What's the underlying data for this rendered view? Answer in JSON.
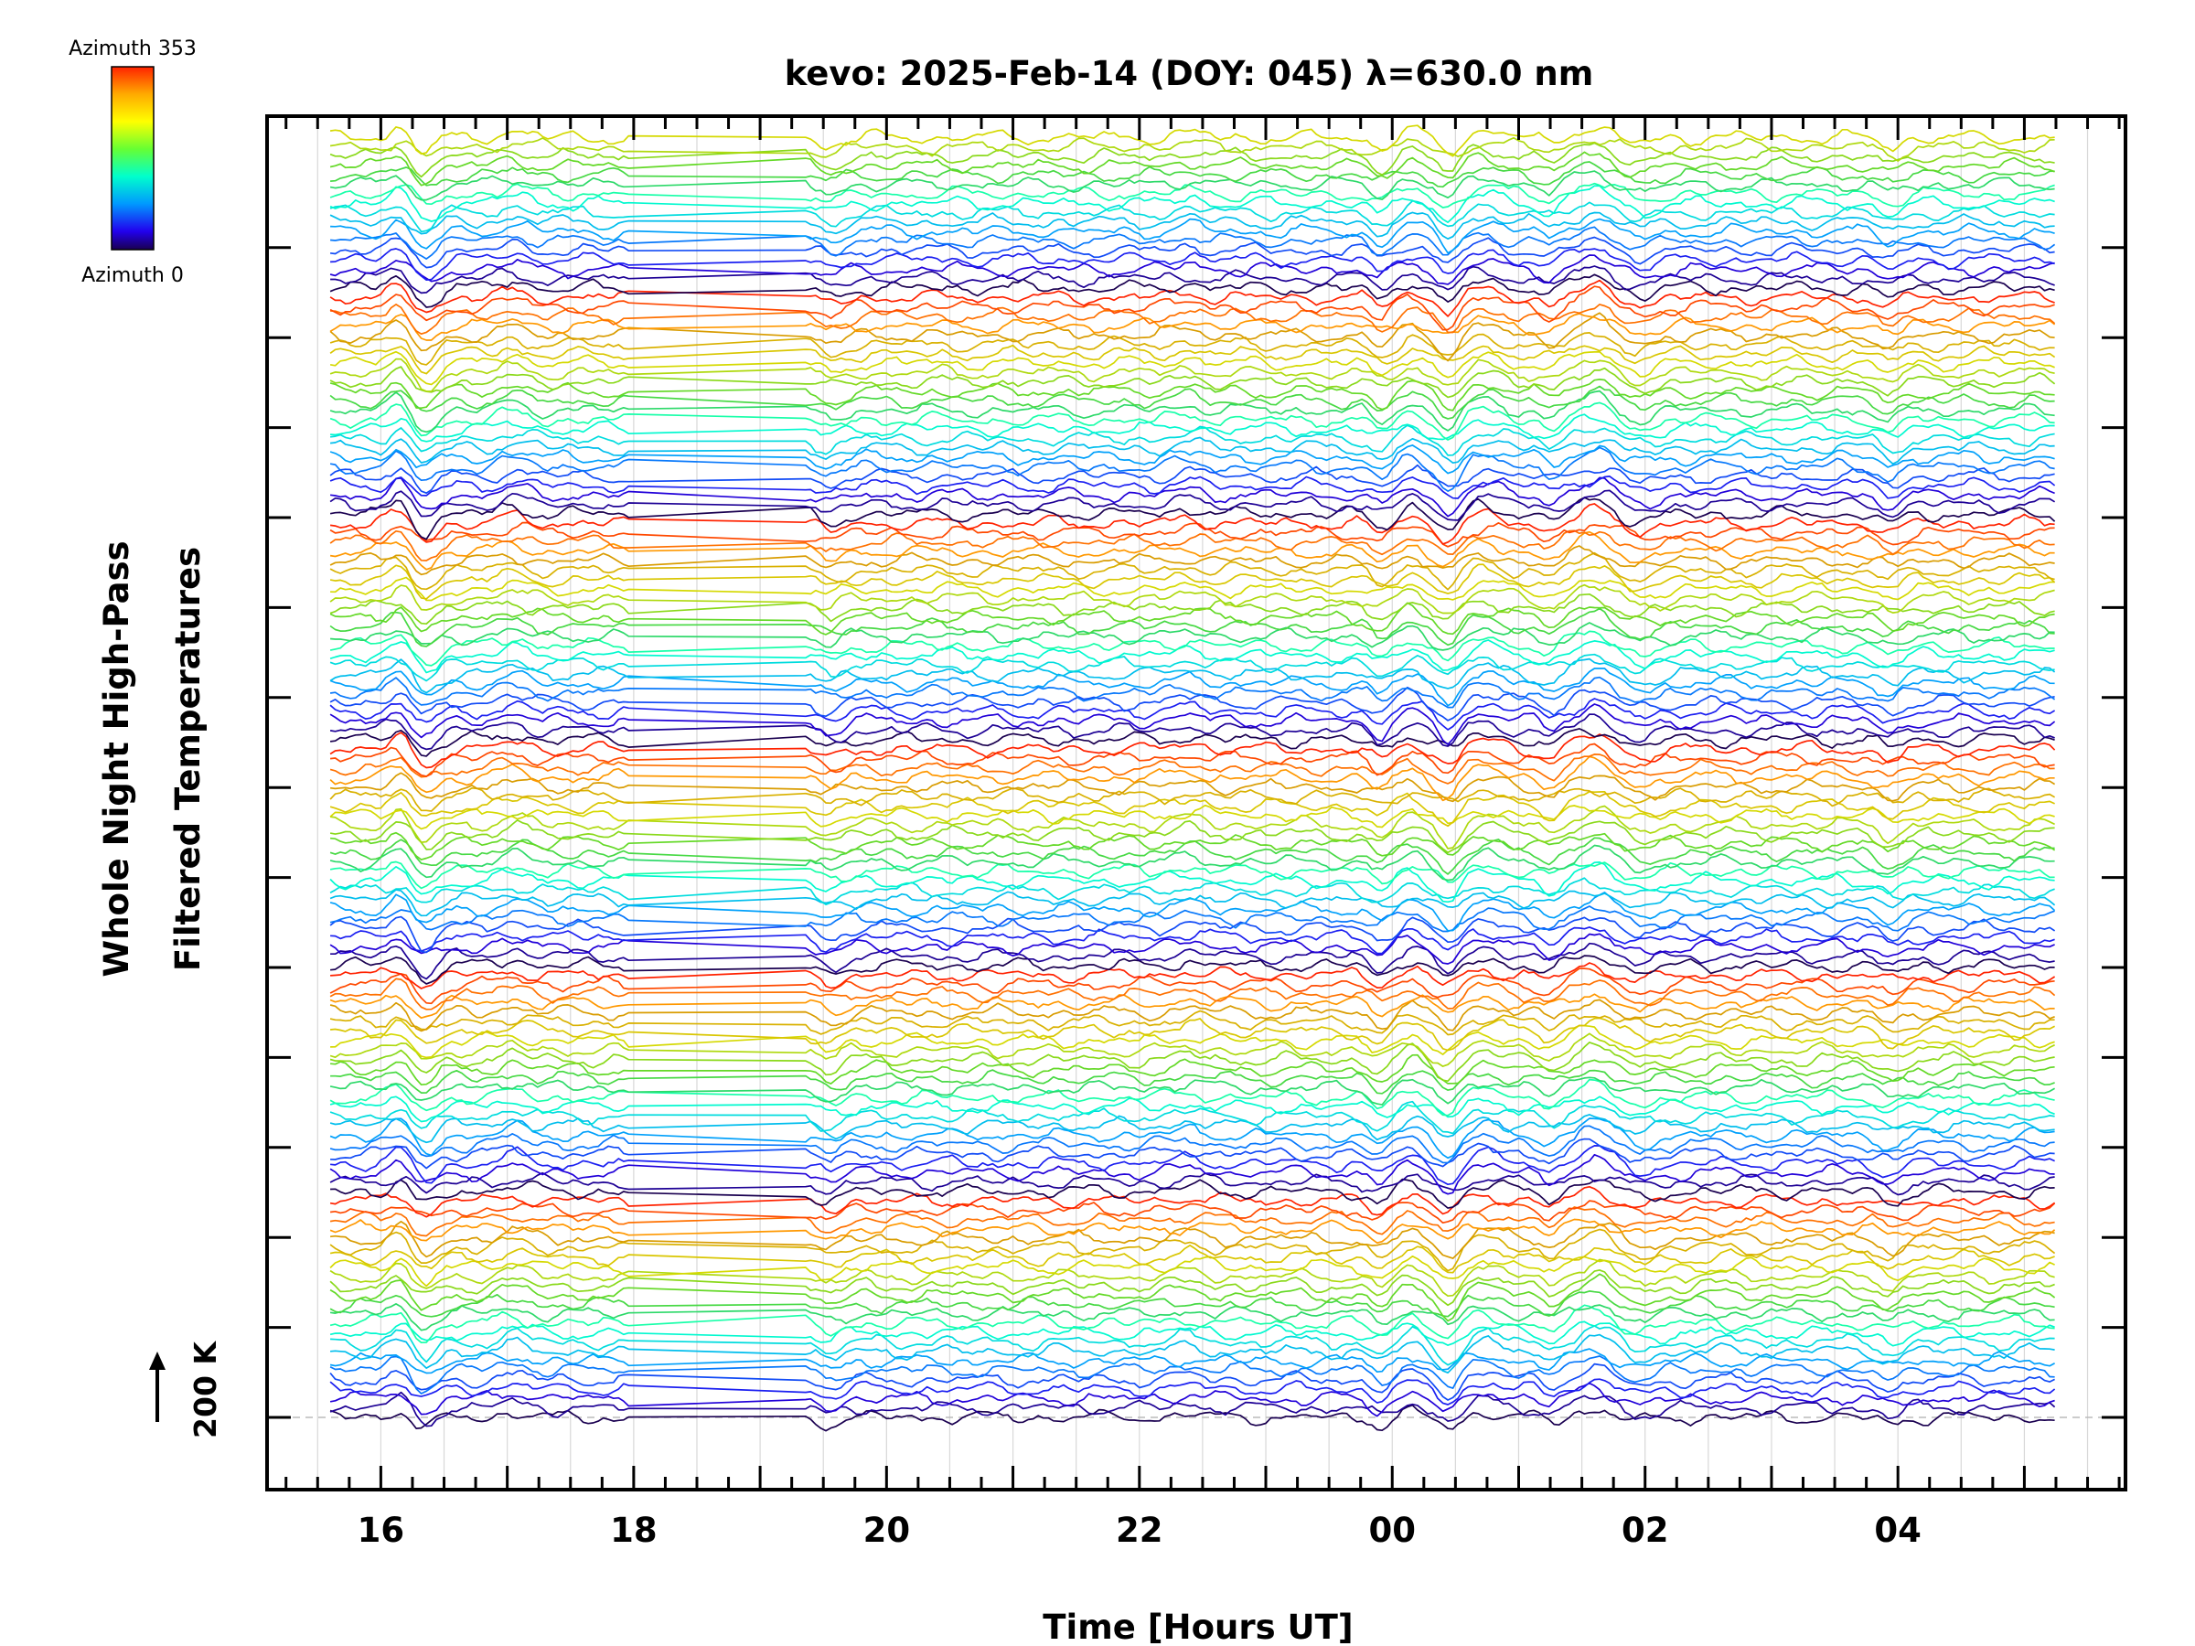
{
  "chart_data": {
    "type": "line",
    "title": "kevo: 2025-Feb-14 (DOY: 045) λ=630.0 nm",
    "xlabel": "Time [Hours UT]",
    "ylabel_line1": "Whole Night High-Pass",
    "ylabel_line2": "Filtered Temperatures",
    "x_unit": "hours since 16:00 UT",
    "xlim": [
      -0.9,
      13.8
    ],
    "data_range": [
      -0.4,
      13.25
    ],
    "gap": [
      2.0,
      3.35
    ],
    "x_ticks": [
      {
        "value": 0,
        "label": "16"
      },
      {
        "value": 2,
        "label": "18"
      },
      {
        "value": 4,
        "label": "20"
      },
      {
        "value": 6,
        "label": "22"
      },
      {
        "value": 8,
        "label": "00"
      },
      {
        "value": 10,
        "label": "02"
      },
      {
        "value": 12,
        "label": "04"
      }
    ],
    "scale_bar_label": "200 K",
    "colorbar": {
      "top_label": "Azimuth 353",
      "bottom_label": "Azimuth 0",
      "colors": [
        "#ff2200",
        "#ffaa00",
        "#ffff00",
        "#66ff33",
        "#00ffcc",
        "#0099ff",
        "#2200ee",
        "#1a0050"
      ]
    },
    "series_count": 137,
    "grid": true,
    "legend": "colorbar top-left"
  }
}
